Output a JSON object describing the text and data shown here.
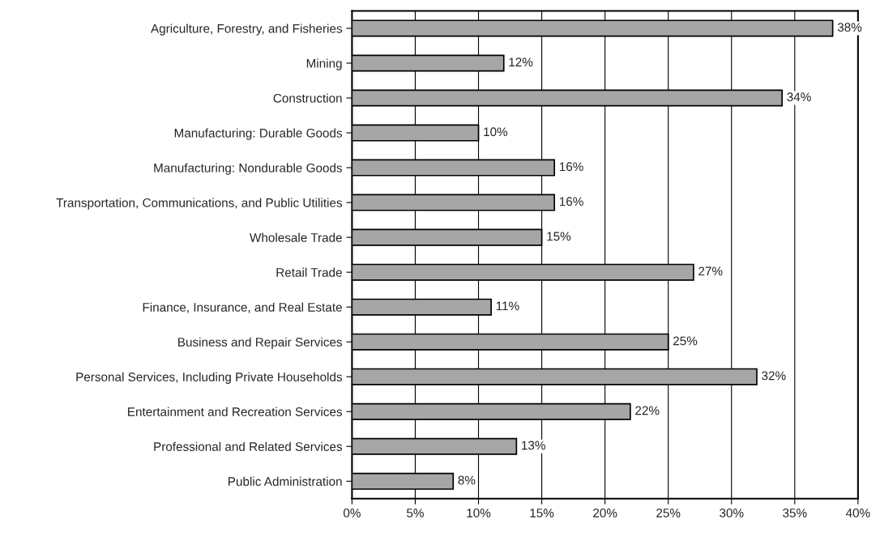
{
  "chart_data": {
    "type": "bar",
    "orientation": "horizontal",
    "categories": [
      "Agriculture, Forestry, and Fisheries",
      "Mining",
      "Construction",
      "Manufacturing: Durable Goods",
      "Manufacturing: Nondurable Goods",
      "Transportation, Communications, and Public Utilities",
      "Wholesale Trade",
      "Retail Trade",
      "Finance, Insurance, and Real Estate",
      "Business and Repair Services",
      "Personal Services, Including Private Households",
      "Entertainment and Recreation Services",
      "Professional and Related Services",
      "Public Administration"
    ],
    "values": [
      38,
      12,
      34,
      10,
      16,
      16,
      15,
      27,
      11,
      25,
      32,
      22,
      13,
      8
    ],
    "value_labels": [
      "38%",
      "12%",
      "34%",
      "10%",
      "16%",
      "16%",
      "15%",
      "27%",
      "11%",
      "25%",
      "32%",
      "22%",
      "13%",
      "8%"
    ],
    "color": "#a6a6a6",
    "xlim": [
      0,
      40
    ],
    "xticks": [
      {
        "value": 0,
        "label": "0%"
      },
      {
        "value": 5,
        "label": "5%"
      },
      {
        "value": 10,
        "label": "10%"
      },
      {
        "value": 15,
        "label": "15%"
      },
      {
        "value": 20,
        "label": "20%"
      },
      {
        "value": 25,
        "label": "25%"
      },
      {
        "value": 30,
        "label": "30%"
      },
      {
        "value": 35,
        "label": "35%"
      },
      {
        "value": 40,
        "label": "40%"
      }
    ],
    "grid": "x"
  }
}
